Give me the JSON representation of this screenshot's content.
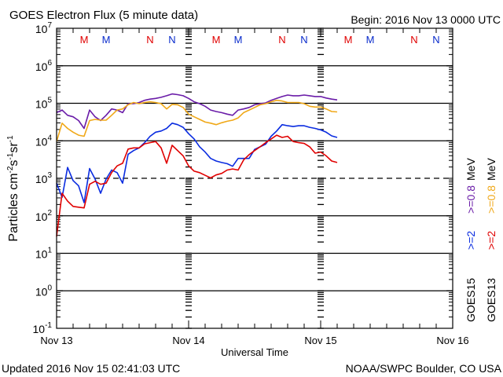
{
  "header": {
    "title": "GOES Electron Flux (5 minute data)",
    "begin": "Begin: 2016 Nov 13 0000 UTC"
  },
  "footer": {
    "updated": "Updated 2016 Nov 15 02:41:03 UTC",
    "credit": "NOAA/SWPC Boulder, CO USA"
  },
  "chart_data": {
    "type": "line",
    "title": "GOES Electron Flux (5 minute data)",
    "xlabel": "Universal Time",
    "ylabel_parts": [
      "Particles cm",
      "-2",
      "s",
      "-1",
      "sr",
      "-1"
    ],
    "yscale": "log",
    "ylim_log10": [
      -1,
      7
    ],
    "y_tick_base": "10",
    "y_tick_exponents": [
      "7",
      "6",
      "5",
      "4",
      "3",
      "2",
      "1",
      "0",
      "-1"
    ],
    "x_tick_labels": [
      "Nov 13",
      "Nov 14",
      "Nov 15",
      "Nov 16"
    ],
    "xlim_hours": [
      0,
      72
    ],
    "x_start_hour": 0,
    "x_step_hours": 1,
    "threshold_line_log10": 3,
    "grid": true,
    "markers": [
      {
        "label": "M",
        "satellite": "GOES13",
        "hour": 5,
        "color": "#e00000"
      },
      {
        "label": "M",
        "satellite": "GOES15",
        "hour": 9,
        "color": "#0a2ccc"
      },
      {
        "label": "N",
        "satellite": "GOES13",
        "hour": 17,
        "color": "#e00000"
      },
      {
        "label": "N",
        "satellite": "GOES15",
        "hour": 21,
        "color": "#0a2ccc"
      }
    ],
    "series": [
      {
        "name": "GOES15 >=0.8 MeV",
        "color": "#6a1ca8",
        "values_log10": [
          4.75,
          4.82,
          4.68,
          4.64,
          4.54,
          4.33,
          4.82,
          4.64,
          4.54,
          4.68,
          4.85,
          4.82,
          4.75,
          4.99,
          4.99,
          5.02,
          5.08,
          5.11,
          5.13,
          5.16,
          5.2,
          5.25,
          5.23,
          5.2,
          5.13,
          5.04,
          4.99,
          4.92,
          4.82,
          4.78,
          4.75,
          4.71,
          4.68,
          4.82,
          4.85,
          4.89,
          4.96,
          4.99,
          5.01,
          5.08,
          5.13,
          5.18,
          5.22,
          5.2,
          5.2,
          5.22,
          5.2,
          5.18,
          5.18,
          5.14,
          5.11,
          5.09
        ]
      },
      {
        "name": "GOES13 >=0.8 MeV",
        "color": "#f0a818",
        "values_log10": [
          3.98,
          4.47,
          4.33,
          4.23,
          4.15,
          4.12,
          4.54,
          4.57,
          4.55,
          4.55,
          4.68,
          4.82,
          4.85,
          4.96,
          5.02,
          4.99,
          5.02,
          5.04,
          5.02,
          4.99,
          4.85,
          4.97,
          4.96,
          4.89,
          4.71,
          4.64,
          4.57,
          4.5,
          4.47,
          4.43,
          4.48,
          4.52,
          4.55,
          4.61,
          4.75,
          4.82,
          4.89,
          4.96,
          4.99,
          5.04,
          5.08,
          5.06,
          5.02,
          5.02,
          5.02,
          4.99,
          4.92,
          4.9,
          4.9,
          4.85,
          4.78,
          4.77
        ]
      },
      {
        "name": "GOES15 >=2 MeV",
        "color": "#0a2ce0",
        "values_log10": [
          2.87,
          2.49,
          3.29,
          2.94,
          2.8,
          2.35,
          3.26,
          2.98,
          2.6,
          2.98,
          3.22,
          3.15,
          2.87,
          3.64,
          3.74,
          3.81,
          3.95,
          4.12,
          4.23,
          4.26,
          4.33,
          4.47,
          4.43,
          4.36,
          4.19,
          4.05,
          3.84,
          3.7,
          3.53,
          3.46,
          3.42,
          3.39,
          3.32,
          3.53,
          3.53,
          3.53,
          3.77,
          3.84,
          3.91,
          4.12,
          4.26,
          4.43,
          4.4,
          4.38,
          4.4,
          4.4,
          4.36,
          4.33,
          4.29,
          4.23,
          4.13,
          4.09
        ]
      },
      {
        "name": "GOES13 >=2 MeV",
        "color": "#e00000",
        "values_log10": [
          1.45,
          2.6,
          2.39,
          2.25,
          2.23,
          2.21,
          2.84,
          2.92,
          2.84,
          2.87,
          3.15,
          3.33,
          3.4,
          3.78,
          3.81,
          3.81,
          3.92,
          3.95,
          3.98,
          3.81,
          3.4,
          3.88,
          3.74,
          3.6,
          3.33,
          3.19,
          3.15,
          3.08,
          3.01,
          3.09,
          3.13,
          3.22,
          3.25,
          3.22,
          3.49,
          3.63,
          3.74,
          3.84,
          3.95,
          4.05,
          4.15,
          4.09,
          4.12,
          3.98,
          3.95,
          3.93,
          3.84,
          3.67,
          3.7,
          3.6,
          3.46,
          3.42
        ]
      }
    ],
    "legend": {
      "placement": "right",
      "columns": [
        {
          "satellite": "GOES15",
          "low": ">=2",
          "low_color": "#0a2ce0",
          "high": ">=0.8",
          "high_color": "#6a1ca8",
          "unit": "MeV"
        },
        {
          "satellite": "GOES13",
          "low": ">=2",
          "low_color": "#e00000",
          "high": ">=0.8",
          "high_color": "#f0a818",
          "unit": "MeV"
        }
      ]
    }
  }
}
